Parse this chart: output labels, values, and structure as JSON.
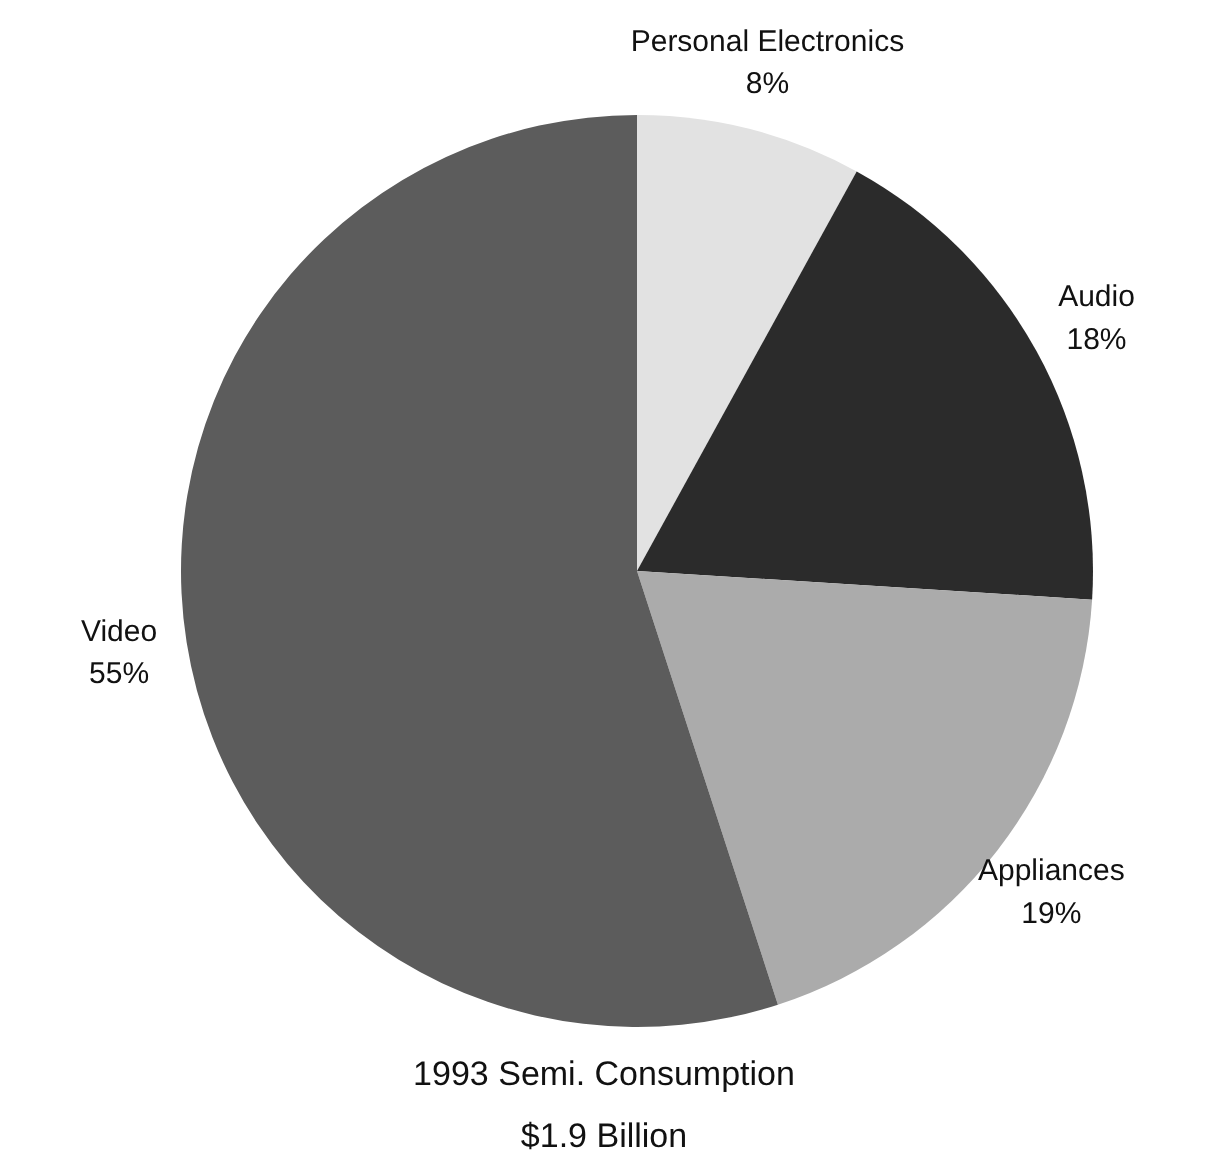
{
  "chart_data": {
    "type": "pie",
    "title": "1993 Semi. Consumption",
    "subtitle": "$1.9 Billion",
    "categories": [
      "Personal Electronics",
      "Audio",
      "Appliances",
      "Video"
    ],
    "values": [
      8,
      18,
      19,
      55
    ],
    "value_labels": [
      "8%",
      "18%",
      "19%",
      "55%"
    ],
    "colors": [
      "#e2e2e2",
      "#2b2b2b",
      "#ababab",
      "#5c5c5c"
    ]
  }
}
